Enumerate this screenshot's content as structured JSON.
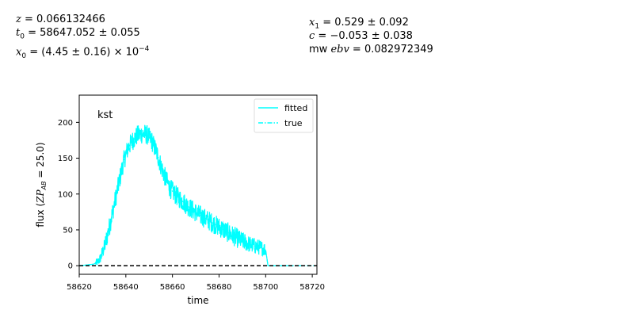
{
  "header": {
    "z": "0.066132466",
    "t0": "58647.052 ± 0.055",
    "x0": "(4.45 ± 0.16) × 10",
    "x0_exp": "−4",
    "x1": "0.529 ± 0.092",
    "c": "−0.053 ± 0.038",
    "mwebv": "0.082972349"
  },
  "colors": {
    "fitted": "#00ffff",
    "true": "#00ffff",
    "zero_line": "#000000"
  },
  "chart_data": {
    "type": "line",
    "band_label": "kst",
    "xlabel": "time",
    "ylabel": "flux (ZP_AB = 25.0)",
    "xlim": [
      58620,
      58722
    ],
    "ylim": [
      -12,
      238
    ],
    "xticks": [
      58620,
      58640,
      58660,
      58680,
      58700,
      58720
    ],
    "yticks": [
      0,
      50,
      100,
      150,
      200
    ],
    "legend": {
      "position": "top-right",
      "entries": [
        "fitted",
        "true"
      ]
    },
    "series": [
      {
        "name": "fitted",
        "style": "solid",
        "x": [
          58620,
          58626,
          58628,
          58629,
          58631,
          58633,
          58635,
          58637,
          58639,
          58641,
          58643,
          58645,
          58647,
          58649,
          58651,
          58653,
          58655,
          58657,
          58659,
          58661,
          58663,
          58665,
          58667,
          58669,
          58671,
          58673,
          58675,
          58677,
          58679,
          58681,
          58683,
          58685,
          58687,
          58689,
          58691,
          58693,
          58695,
          58697,
          58699,
          58700,
          58701,
          58712
        ],
        "y": [
          0,
          2,
          5,
          10,
          28,
          55,
          85,
          115,
          145,
          165,
          175,
          182,
          184,
          183,
          175,
          160,
          140,
          122,
          108,
          100,
          94,
          88,
          82,
          77,
          72,
          68,
          64,
          60,
          56,
          52,
          48,
          44,
          40,
          36,
          33,
          30,
          28,
          26,
          24,
          22,
          0,
          0
        ]
      },
      {
        "name": "true",
        "style": "dash-dot",
        "x": [
          58620,
          58626,
          58628,
          58629,
          58631,
          58633,
          58635,
          58637,
          58639,
          58641,
          58643,
          58645,
          58647,
          58649,
          58651,
          58653,
          58655,
          58657,
          58659,
          58661,
          58663,
          58665,
          58667,
          58669,
          58671,
          58673,
          58675,
          58677,
          58679,
          58681,
          58683,
          58685,
          58687,
          58689,
          58691,
          58693,
          58695,
          58697,
          58699,
          58700,
          58701,
          58722
        ],
        "y": [
          0,
          2,
          5,
          10,
          28,
          55,
          85,
          115,
          145,
          165,
          175,
          182,
          184,
          183,
          175,
          160,
          140,
          122,
          108,
          100,
          94,
          88,
          82,
          77,
          72,
          68,
          64,
          60,
          56,
          52,
          48,
          44,
          40,
          36,
          33,
          30,
          28,
          26,
          24,
          22,
          0,
          0
        ]
      }
    ],
    "zero_line": {
      "y": 0,
      "style": "dashed"
    },
    "noise_amplitude": 14
  }
}
